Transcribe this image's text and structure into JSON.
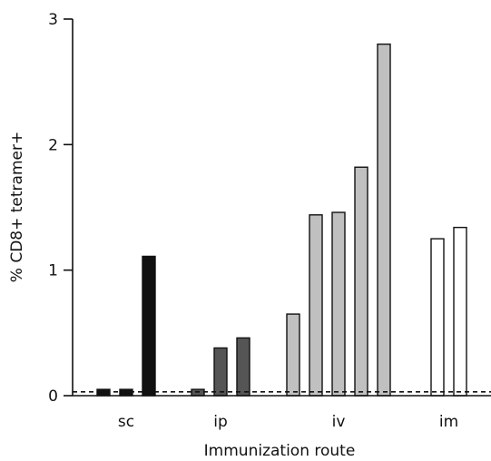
{
  "chart_data": {
    "type": "bar",
    "xlabel": "Immunization route",
    "ylabel": "% CD8+ tetramer+",
    "ylim": [
      0,
      3
    ],
    "yticks": [
      "0",
      "1",
      "2",
      "3"
    ],
    "threshold": 0.03,
    "groups": [
      {
        "label": "sc",
        "color": "#111111",
        "values": [
          0.05,
          0.05,
          1.11
        ]
      },
      {
        "label": "ip",
        "color": "#555555",
        "values": [
          0.05,
          0.38,
          0.46
        ]
      },
      {
        "label": "iv",
        "color": "#c0c0c0",
        "values": [
          0.65,
          1.44,
          1.46,
          1.82,
          2.8
        ]
      },
      {
        "label": "im",
        "color": "#ffffff",
        "values": [
          1.25,
          1.34
        ]
      }
    ]
  }
}
